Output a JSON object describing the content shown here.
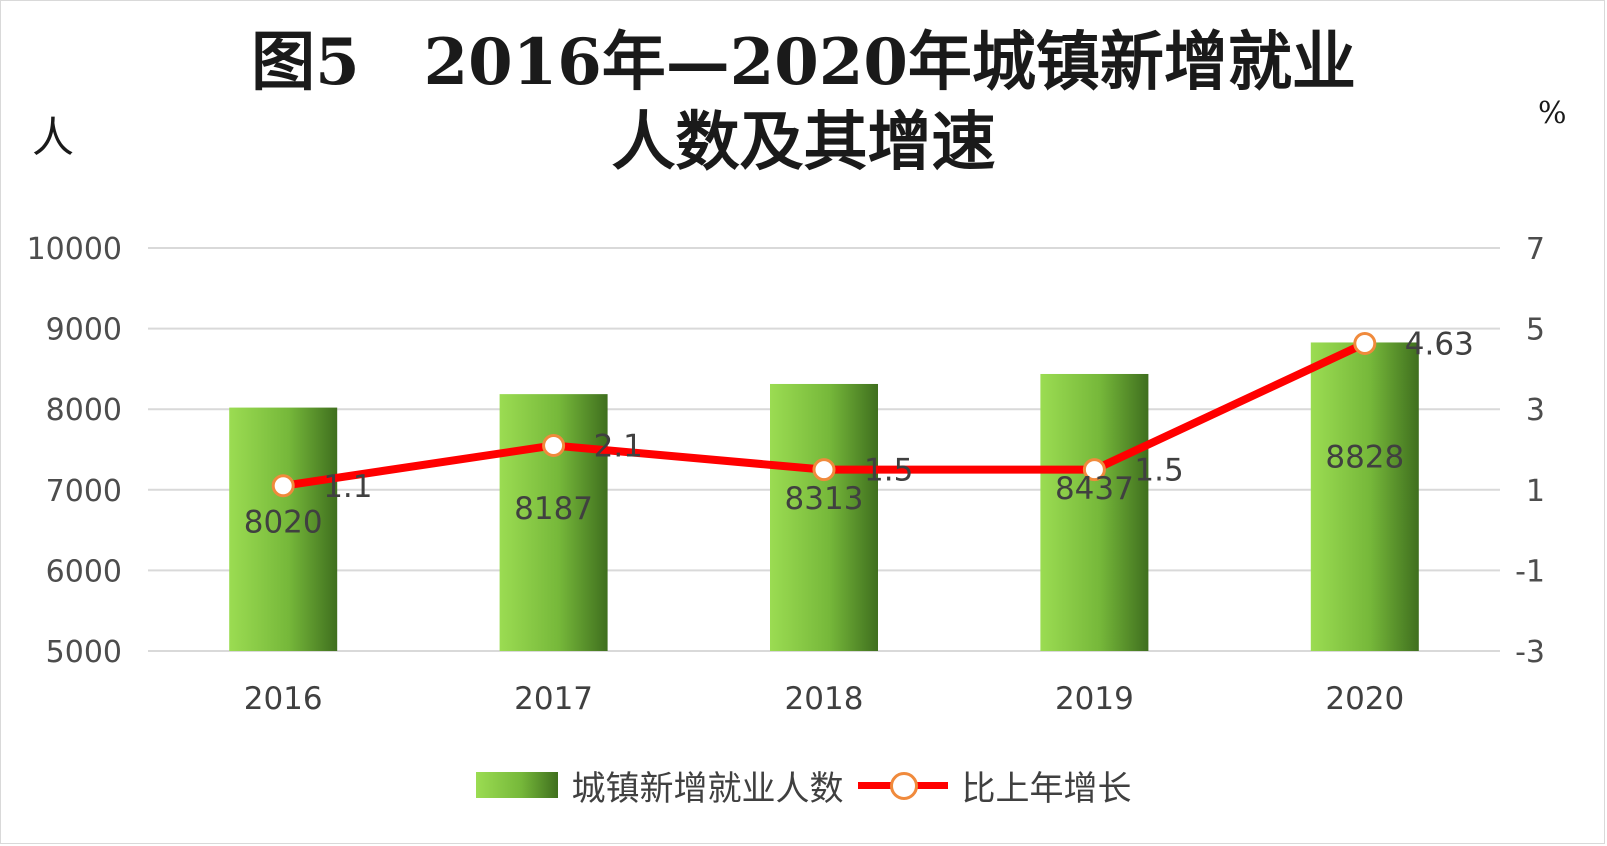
{
  "chart_data": {
    "type": "bar",
    "title_line1": "图5　2016年—2020年城镇新增就业",
    "title_line2": "人数及其增速",
    "left_unit": "人",
    "right_unit": "%",
    "categories": [
      "2016",
      "2017",
      "2018",
      "2019",
      "2020"
    ],
    "left_axis": {
      "ticks": [
        "10000",
        "9000",
        "8000",
        "7000",
        "6000",
        "5000"
      ],
      "ylim": [
        5000,
        10000
      ]
    },
    "right_axis": {
      "ticks": [
        "7",
        "5",
        "3",
        "1",
        "-1",
        "-3"
      ],
      "ylim": [
        -3,
        7
      ]
    },
    "series": [
      {
        "name": "城镇新增就业人数",
        "type": "bar",
        "axis": "left",
        "values": [
          8020,
          8187,
          8313,
          8437,
          8828
        ],
        "labels": [
          "8020",
          "8187",
          "8313",
          "8437",
          "8828"
        ]
      },
      {
        "name": "比上年增长",
        "type": "line",
        "axis": "right",
        "values": [
          1.1,
          2.1,
          1.5,
          1.5,
          4.63
        ],
        "labels": [
          "1.1",
          "2.1",
          "1.5",
          "1.5",
          "4.63"
        ]
      }
    ],
    "grid": true,
    "legend_position": "bottom"
  },
  "colors": {
    "bar_light": "#9bdc52",
    "bar_dark": "#3f6f1e",
    "line": "#ff0000",
    "marker_border": "#f08a3c",
    "grid": "#d9d9d9",
    "text": "#404040"
  }
}
